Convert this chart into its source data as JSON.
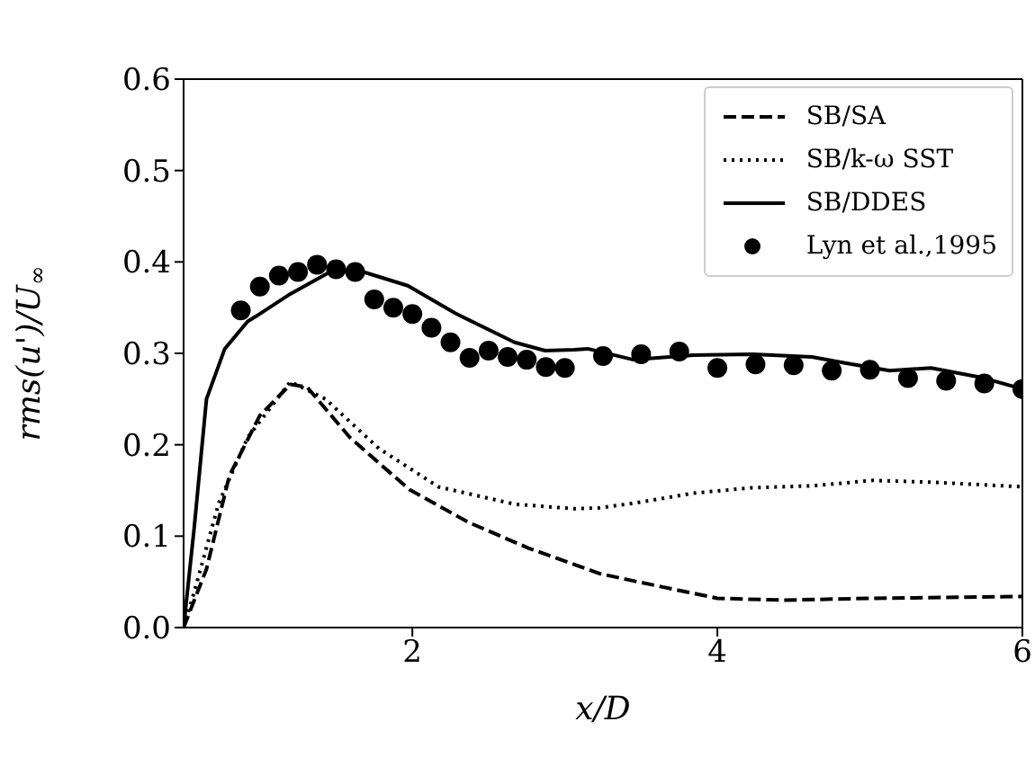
{
  "chart_data": {
    "type": "line",
    "xlabel": "x/D",
    "ylabel": "rms(u')/U$_{∞}$",
    "xlim": [
      0.5,
      6
    ],
    "xticks": [
      2,
      4,
      6
    ],
    "ylim": [
      0,
      0.6
    ],
    "yticks": [
      {
        "value": 0,
        "label": "0.0"
      },
      0.1,
      0.2,
      0.3,
      0.4,
      0.5,
      0.6
    ],
    "grid": false,
    "legend": "top right",
    "series": [
      {
        "name": "SB/SA",
        "line_style": "dashed",
        "color": "#000000",
        "x": [
          0.5,
          0.65,
          0.8,
          1.0,
          1.2,
          1.31,
          1.59,
          1.98,
          2.37,
          2.76,
          3.23,
          3.45,
          4.0,
          4.43,
          5.02,
          6.0
        ],
        "values": [
          0,
          0.064,
          0.166,
          0.232,
          0.266,
          0.263,
          0.208,
          0.151,
          0.115,
          0.087,
          0.059,
          0.051,
          0.032,
          0.03,
          0.032,
          0.034
        ]
      },
      {
        "name": "SB/k-ω SST",
        "line_style": "dotted",
        "color": "#000000",
        "x": [
          0.5,
          0.57,
          0.73,
          0.92,
          1.2,
          1.43,
          1.78,
          2.17,
          2.67,
          3.06,
          3.23,
          3.45,
          3.84,
          4.23,
          4.62,
          5.02,
          5.41,
          6.0
        ],
        "values": [
          0,
          0.039,
          0.136,
          0.208,
          0.269,
          0.25,
          0.196,
          0.154,
          0.135,
          0.13,
          0.131,
          0.136,
          0.147,
          0.153,
          0.155,
          0.161,
          0.159,
          0.154
        ]
      },
      {
        "name": "SB/DDES",
        "line_style": "solid",
        "color": "#000000",
        "x": [
          0.5,
          0.57,
          0.65,
          0.77,
          0.92,
          0.97,
          1.2,
          1.47,
          1.66,
          1.97,
          2.28,
          2.67,
          2.87,
          3.06,
          3.15,
          3.45,
          3.84,
          4.23,
          4.62,
          4.82,
          5.13,
          5.4,
          5.72,
          6.0
        ],
        "values": [
          0,
          0.11,
          0.25,
          0.305,
          0.335,
          0.34,
          0.365,
          0.39,
          0.39,
          0.374,
          0.344,
          0.312,
          0.303,
          0.304,
          0.305,
          0.293,
          0.298,
          0.299,
          0.296,
          0.29,
          0.281,
          0.284,
          0.274,
          0.261
        ]
      },
      {
        "name": "Lyn et al.,1995",
        "type": "scatter",
        "marker": "circle",
        "color": "#000000",
        "x": [
          0.875,
          1.0,
          1.125,
          1.25,
          1.375,
          1.5,
          1.625,
          1.75,
          1.875,
          2.0,
          2.125,
          2.25,
          2.375,
          2.5,
          2.625,
          2.75,
          2.875,
          3.0,
          3.25,
          3.5,
          3.75,
          4.0,
          4.25,
          4.5,
          4.75,
          5.0,
          5.25,
          5.5,
          5.75,
          6.0
        ],
        "values": [
          0.347,
          0.373,
          0.385,
          0.389,
          0.397,
          0.392,
          0.389,
          0.359,
          0.35,
          0.343,
          0.328,
          0.312,
          0.295,
          0.303,
          0.296,
          0.293,
          0.285,
          0.284,
          0.297,
          0.299,
          0.302,
          0.284,
          0.288,
          0.287,
          0.281,
          0.282,
          0.273,
          0.27,
          0.267,
          0.261
        ]
      }
    ]
  }
}
